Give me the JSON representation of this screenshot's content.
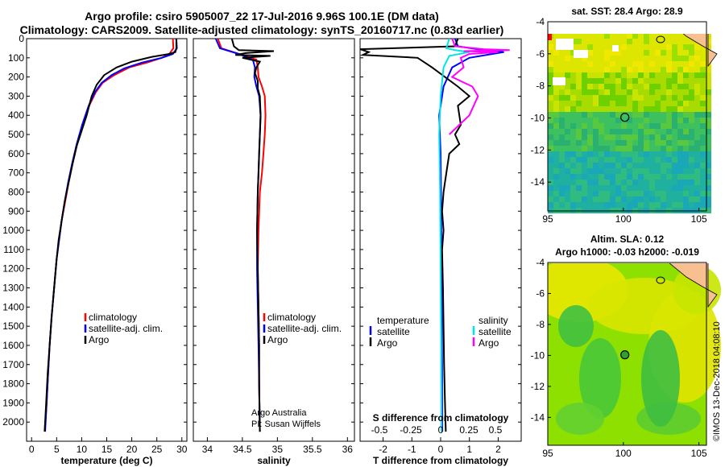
{
  "title_line1": "Argo profile: csiro 5905007_22 17-Jul-2016 9.96S 100.1E (DM data)",
  "title_line2": "Climatology: CARS2009. Satellite-adjusted climatology: synTS_20160717.nc (0.83d earlier)",
  "colors": {
    "climatology": "#ff0000",
    "satellite": "#0000ff",
    "argo": "#000000",
    "sat_salinity": "#00e5e5",
    "argo_salinity": "#ff00ff"
  },
  "chart_data": [
    {
      "type": "line",
      "id": "temperature",
      "xlabel": "temperature (deg C)",
      "xlim": [
        -1,
        31
      ],
      "xticks": [
        0,
        5,
        10,
        15,
        20,
        25,
        30
      ],
      "ylim": [
        0,
        2100
      ],
      "yticks": [
        0,
        100,
        200,
        300,
        400,
        500,
        600,
        700,
        800,
        900,
        1000,
        1100,
        1200,
        1300,
        1400,
        1500,
        1600,
        1700,
        1800,
        1900,
        2000
      ],
      "legend": [
        "climatology",
        "satellite-adj. clim.",
        "Argo"
      ],
      "series": [
        {
          "name": "climatology",
          "color": "#ff0000",
          "points": [
            [
              28.2,
              0
            ],
            [
              28.3,
              50
            ],
            [
              27.5,
              80
            ],
            [
              26,
              100
            ],
            [
              23,
              125
            ],
            [
              19.5,
              150
            ],
            [
              16.5,
              190
            ],
            [
              14.2,
              230
            ],
            [
              12.8,
              280
            ],
            [
              11.5,
              350
            ],
            [
              10.2,
              450
            ],
            [
              9.1,
              550
            ],
            [
              8.2,
              650
            ],
            [
              7.4,
              750
            ],
            [
              6.7,
              850
            ],
            [
              6.0,
              950
            ],
            [
              5.5,
              1050
            ],
            [
              5.0,
              1150
            ],
            [
              4.5,
              1300
            ],
            [
              4.0,
              1450
            ],
            [
              3.6,
              1600
            ],
            [
              3.3,
              1750
            ],
            [
              3.0,
              1900
            ],
            [
              2.6,
              2050
            ]
          ]
        },
        {
          "name": "satellite-adj. clim.",
          "color": "#0000ff",
          "points": [
            [
              28.9,
              0
            ],
            [
              29.0,
              50
            ],
            [
              28.2,
              80
            ],
            [
              26,
              100
            ],
            [
              22,
              125
            ],
            [
              18.5,
              155
            ],
            [
              16,
              190
            ],
            [
              14,
              230
            ],
            [
              12.6,
              280
            ],
            [
              11.4,
              350
            ],
            [
              10.1,
              450
            ],
            [
              9.0,
              550
            ],
            [
              8.1,
              650
            ],
            [
              7.3,
              750
            ],
            [
              6.6,
              850
            ],
            [
              6.0,
              950
            ],
            [
              5.5,
              1050
            ],
            [
              5.0,
              1150
            ],
            [
              4.5,
              1300
            ],
            [
              4.0,
              1450
            ],
            [
              3.6,
              1600
            ],
            [
              3.3,
              1750
            ],
            [
              3.0,
              1900
            ],
            [
              2.7,
              2050
            ]
          ]
        },
        {
          "name": "Argo",
          "color": "#000000",
          "points": [
            [
              28.9,
              0
            ],
            [
              28.9,
              50
            ],
            [
              28.7,
              70
            ],
            [
              27.5,
              80
            ],
            [
              24,
              95
            ],
            [
              20,
              120
            ],
            [
              17,
              150
            ],
            [
              14.5,
              190
            ],
            [
              13,
              240
            ],
            [
              12,
              300
            ],
            [
              11,
              400
            ],
            [
              10,
              480
            ],
            [
              9,
              560
            ],
            [
              8.2,
              650
            ],
            [
              7.4,
              750
            ],
            [
              6.6,
              850
            ],
            [
              6.0,
              950
            ],
            [
              5.4,
              1050
            ],
            [
              5.0,
              1150
            ],
            [
              4.5,
              1300
            ],
            [
              4.0,
              1450
            ],
            [
              3.6,
              1600
            ],
            [
              3.2,
              1750
            ],
            [
              2.9,
              1900
            ],
            [
              2.6,
              2050
            ]
          ]
        }
      ]
    },
    {
      "type": "line",
      "id": "salinity",
      "xlabel": "salinity",
      "xlim": [
        33.8,
        36.1
      ],
      "xticks": [
        34,
        34.5,
        35,
        35.5,
        36
      ],
      "ylim": [
        0,
        2100
      ],
      "legend": [
        "climatology",
        "satellite-adj. clim.",
        "Argo"
      ],
      "credit": [
        "Argo Australia",
        "PI: Susan Wijffels"
      ],
      "series": [
        {
          "name": "climatology",
          "color": "#ff0000",
          "points": [
            [
              34.15,
              0
            ],
            [
              34.2,
              50
            ],
            [
              34.45,
              80
            ],
            [
              34.7,
              110
            ],
            [
              34.72,
              150
            ],
            [
              34.73,
              200
            ],
            [
              34.78,
              250
            ],
            [
              34.82,
              300
            ],
            [
              34.83,
              400
            ],
            [
              34.82,
              500
            ],
            [
              34.8,
              600
            ],
            [
              34.78,
              700
            ],
            [
              34.75,
              800
            ],
            [
              34.73,
              1000
            ],
            [
              34.72,
              1200
            ],
            [
              34.73,
              1400
            ],
            [
              34.74,
              1600
            ],
            [
              34.74,
              1800
            ],
            [
              34.75,
              2050
            ]
          ]
        },
        {
          "name": "satellite-adj. clim.",
          "color": "#0000ff",
          "points": [
            [
              34.12,
              0
            ],
            [
              34.18,
              50
            ],
            [
              34.45,
              80
            ],
            [
              34.65,
              110
            ],
            [
              34.68,
              150
            ],
            [
              34.67,
              200
            ],
            [
              34.7,
              250
            ],
            [
              34.74,
              300
            ],
            [
              34.76,
              400
            ],
            [
              34.75,
              500
            ],
            [
              34.74,
              600
            ],
            [
              34.73,
              700
            ],
            [
              34.72,
              800
            ],
            [
              34.71,
              1000
            ],
            [
              34.71,
              1200
            ],
            [
              34.72,
              1400
            ],
            [
              34.73,
              1600
            ],
            [
              34.74,
              1800
            ],
            [
              34.75,
              2050
            ]
          ]
        },
        {
          "name": "Argo",
          "color": "#000000",
          "points": [
            [
              34.35,
              0
            ],
            [
              34.38,
              40
            ],
            [
              34.45,
              60
            ],
            [
              34.95,
              65
            ],
            [
              34.55,
              75
            ],
            [
              34.4,
              85
            ],
            [
              34.9,
              90
            ],
            [
              34.5,
              100
            ],
            [
              34.75,
              120
            ],
            [
              34.7,
              150
            ],
            [
              34.68,
              180
            ],
            [
              34.72,
              220
            ],
            [
              34.72,
              260
            ],
            [
              34.75,
              300
            ],
            [
              34.76,
              400
            ],
            [
              34.75,
              500
            ],
            [
              34.74,
              600
            ],
            [
              34.73,
              700
            ],
            [
              34.72,
              800
            ],
            [
              34.71,
              1000
            ],
            [
              34.72,
              1200
            ],
            [
              34.73,
              1400
            ],
            [
              34.74,
              1600
            ],
            [
              34.74,
              1800
            ],
            [
              34.75,
              2050
            ]
          ]
        }
      ]
    },
    {
      "type": "line",
      "id": "difference",
      "xlabel": "T difference from climatology",
      "xlabel2": "S difference from climatology",
      "xlim": [
        -2.8,
        2.8
      ],
      "xticks": [
        -2,
        -1,
        0,
        1,
        2
      ],
      "xticks2": [
        "-0.5",
        "-0.25",
        "0",
        "0.25",
        "0.5"
      ],
      "ylim": [
        0,
        2100
      ],
      "legend_left": {
        "title": "temperature",
        "items": [
          "satellite",
          "Argo"
        ]
      },
      "legend_right": {
        "title": "salinity",
        "items": [
          "satellite",
          "Argo"
        ]
      },
      "series": [
        {
          "name": "temperature satellite",
          "color": "#0000ff",
          "points": [
            [
              0.5,
              0
            ],
            [
              0.6,
              40
            ],
            [
              1.5,
              60
            ],
            [
              2.2,
              70
            ],
            [
              1.8,
              80
            ],
            [
              1.0,
              100
            ],
            [
              0.4,
              150
            ],
            [
              0.1,
              250
            ],
            [
              -0.05,
              400
            ],
            [
              0,
              600
            ],
            [
              0.02,
              900
            ],
            [
              0.03,
              1300
            ],
            [
              0.05,
              1700
            ],
            [
              0.06,
              2050
            ]
          ]
        },
        {
          "name": "temperature Argo",
          "color": "#000000",
          "points": [
            [
              0.6,
              0
            ],
            [
              0.5,
              40
            ],
            [
              -2.8,
              55
            ],
            [
              -2.5,
              70
            ],
            [
              -2.7,
              85
            ],
            [
              -0.8,
              100
            ],
            [
              -0.3,
              150
            ],
            [
              0.6,
              250
            ],
            [
              1.0,
              300
            ],
            [
              0.6,
              350
            ],
            [
              0.7,
              450
            ],
            [
              0.5,
              500
            ],
            [
              0.65,
              550
            ],
            [
              0.3,
              600
            ],
            [
              0.2,
              700
            ],
            [
              0.1,
              800
            ],
            [
              0.05,
              900
            ],
            [
              0.1,
              1000
            ],
            [
              0.05,
              1100
            ],
            [
              0.08,
              1300
            ],
            [
              0.1,
              1500
            ],
            [
              0.12,
              1700
            ],
            [
              0.15,
              1900
            ],
            [
              0.18,
              2050
            ]
          ]
        },
        {
          "name": "salinity satellite",
          "color": "#00e5e5",
          "points": [
            [
              0.3,
              0
            ],
            [
              0.2,
              50
            ],
            [
              0.5,
              60
            ],
            [
              1.0,
              70
            ],
            [
              0.3,
              90
            ],
            [
              0.1,
              150
            ],
            [
              0.0,
              300
            ],
            [
              -0.05,
              500
            ],
            [
              -0.02,
              800
            ],
            [
              0.0,
              1200
            ],
            [
              0.02,
              1600
            ],
            [
              0.03,
              2050
            ]
          ]
        },
        {
          "name": "salinity Argo",
          "color": "#ff00ff",
          "points": [
            [
              0.4,
              0
            ],
            [
              0.5,
              40
            ],
            [
              1.5,
              55
            ],
            [
              2.4,
              60
            ],
            [
              0.8,
              65
            ],
            [
              2.0,
              70
            ],
            [
              1.0,
              80
            ],
            [
              0.7,
              100
            ],
            [
              0.8,
              150
            ],
            [
              0.4,
              200
            ],
            [
              1.1,
              250
            ],
            [
              1.3,
              300
            ],
            [
              1.0,
              400
            ],
            [
              0.3,
              500
            ]
          ]
        }
      ]
    },
    {
      "type": "heatmap",
      "id": "sst-map",
      "title": "sat. SST: 28.4 Argo: 28.9",
      "xlim": [
        95,
        105.5
      ],
      "ylim": [
        -15.8,
        -4
      ],
      "xticks": [
        95,
        100,
        105
      ],
      "yticks": [
        -4,
        -6,
        -8,
        -10,
        -12,
        -14
      ],
      "marker": {
        "lon": 100.1,
        "lat": -9.96
      }
    },
    {
      "type": "heatmap",
      "id": "sla-map",
      "title": "Altim. SLA: 0.12",
      "subtitle": "Argo h1000: -0.03 h2000: -0.019",
      "xlim": [
        95,
        105.5
      ],
      "ylim": [
        -15.8,
        -4
      ],
      "xticks": [
        95,
        100,
        105
      ],
      "yticks": [
        -4,
        -6,
        -8,
        -10,
        -12,
        -14
      ],
      "marker": {
        "lon": 100.1,
        "lat": -9.96
      }
    }
  ],
  "watermark": "©IMOS 13-Dec-2018 04:08:10"
}
